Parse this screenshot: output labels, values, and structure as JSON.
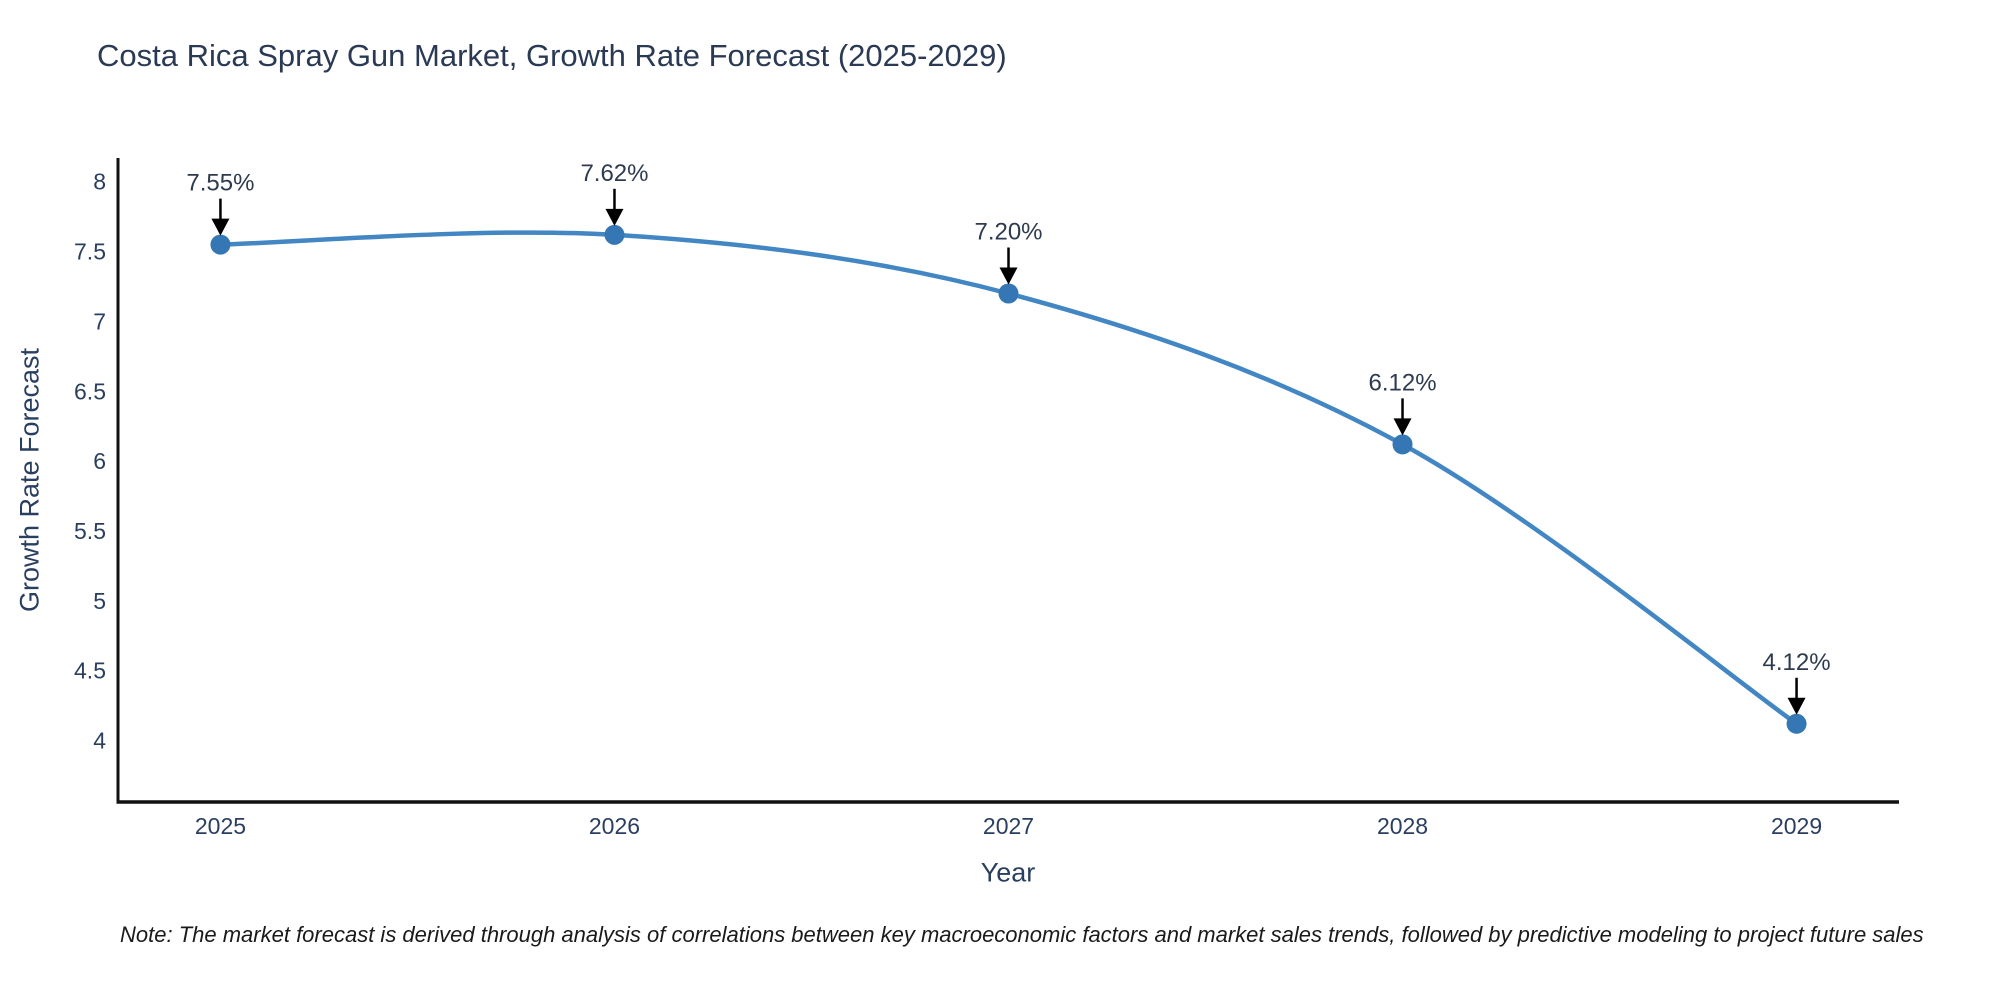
{
  "title": "Costa Rica Spray Gun Market, Growth Rate Forecast (2025-2029)",
  "note": "Note: The market forecast is derived through analysis of correlations between key macroeconomic factors and market sales trends, followed by predictive modeling to project future sales",
  "chart_data": {
    "type": "line",
    "title": "Costa Rica Spray Gun Market, Growth Rate Forecast (2025-2029)",
    "xlabel": "Year",
    "ylabel": "Growth Rate Forecast",
    "x": [
      2025,
      2026,
      2027,
      2028,
      2029
    ],
    "series": [
      {
        "name": "Growth Rate Forecast",
        "values": [
          7.55,
          7.62,
          7.2,
          6.12,
          4.12
        ]
      }
    ],
    "point_labels": [
      "7.55%",
      "7.62%",
      "7.20%",
      "6.12%",
      "4.12%"
    ],
    "xtick_labels": [
      "2025",
      "2026",
      "2027",
      "2028",
      "2029"
    ],
    "ytick_values": [
      4,
      4.5,
      5,
      5.5,
      6,
      6.5,
      7,
      7.5,
      8
    ],
    "ytick_labels": [
      "4",
      "4.5",
      "5",
      "5.5",
      "6",
      "6.5",
      "7",
      "7.5",
      "8"
    ],
    "xlim": [
      2024.74,
      2029.26
    ],
    "ylim": [
      3.56,
      8.17
    ],
    "grid": false,
    "legend": false,
    "line_shape": "spline",
    "colors": {
      "line": "#4286c3",
      "marker": "#3577b4",
      "axis_line": "#111111",
      "tick_text": "#2a3f5f",
      "annotation_text": "#2e3b4e",
      "annotation_arrow": "#000000"
    }
  }
}
